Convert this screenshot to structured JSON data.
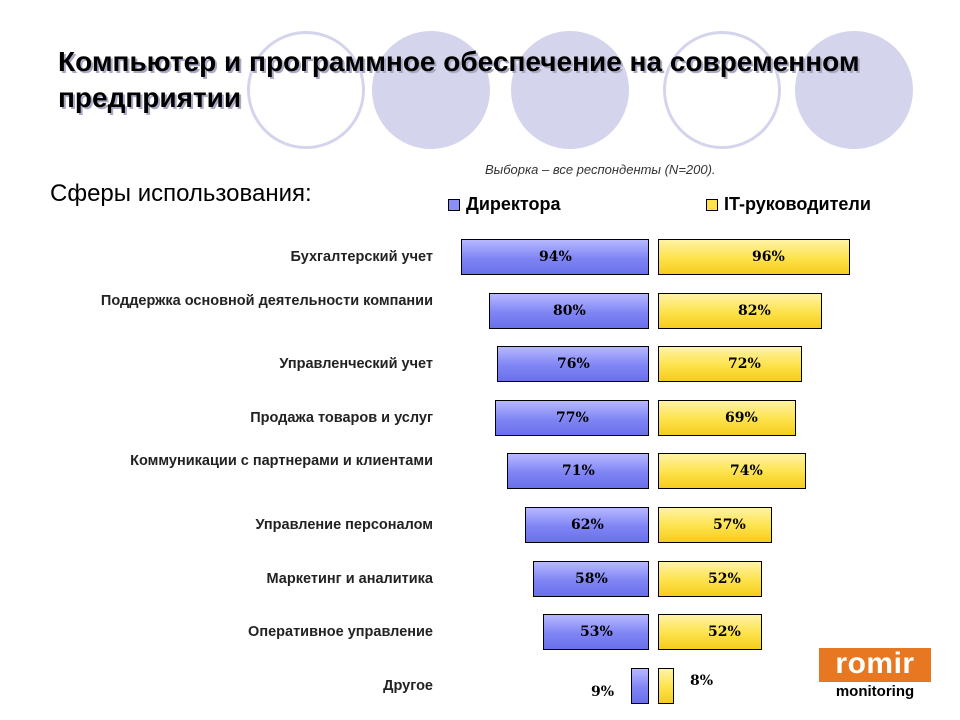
{
  "slide": {
    "title": "Компьютер и программное обеспечение на современном предприятии",
    "subtitle": "Сферы использования:",
    "sample_note": "Выборка – все респонденты (N=200)."
  },
  "legend": [
    {
      "label": "Директора",
      "color": "#8a8ff5"
    },
    {
      "label": "IT-руководители",
      "color": "#fde24a"
    }
  ],
  "logo": {
    "top": "romir",
    "bottom": "monitoring",
    "color": "#e87722"
  },
  "chart_data": {
    "type": "bar",
    "title": "",
    "xlabel": "",
    "ylabel": "",
    "ylim": [
      0,
      100
    ],
    "categories": [
      "Бухгалтерский учет",
      "Поддержка основной деятельности компании",
      "Управленческий учет",
      "Продажа товаров и услуг",
      "Коммуникации с партнерами и клиентами",
      "Управление персоналом",
      "Маркетинг и аналитика",
      "Оперативное управление",
      "Другое"
    ],
    "series": [
      {
        "name": "Директора",
        "color": "#8a8ff5",
        "values": [
          94,
          80,
          76,
          77,
          71,
          62,
          58,
          53,
          9
        ]
      },
      {
        "name": "IT-руководители",
        "color": "#fde24a",
        "values": [
          96,
          82,
          72,
          69,
          74,
          57,
          52,
          52,
          8
        ]
      }
    ],
    "value_suffix": "%"
  }
}
